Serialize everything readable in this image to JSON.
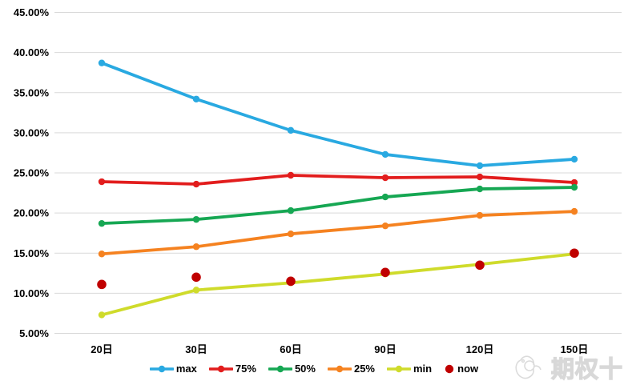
{
  "watermark": {
    "text": "期权十",
    "logo": "hand-logo"
  },
  "chart_data": {
    "type": "line",
    "title": "",
    "xlabel": "",
    "ylabel": "",
    "categories": [
      "20日",
      "30日",
      "60日",
      "90日",
      "120日",
      "150日"
    ],
    "series": [
      {
        "name": "max",
        "color": "#29A9E1",
        "line": true,
        "values": [
          38.7,
          34.2,
          30.3,
          27.3,
          25.9,
          26.7
        ]
      },
      {
        "name": "75%",
        "color": "#E21D1D",
        "line": true,
        "values": [
          23.9,
          23.6,
          24.7,
          24.4,
          24.5,
          23.8
        ]
      },
      {
        "name": "50%",
        "color": "#16A753",
        "line": true,
        "values": [
          18.7,
          19.2,
          20.3,
          22.0,
          23.0,
          23.2
        ]
      },
      {
        "name": "25%",
        "color": "#F58220",
        "line": true,
        "values": [
          14.9,
          15.8,
          17.4,
          18.4,
          19.7,
          20.2
        ]
      },
      {
        "name": "min",
        "color": "#CFDB2B",
        "line": true,
        "values": [
          7.3,
          10.4,
          11.3,
          12.4,
          13.6,
          14.9
        ]
      },
      {
        "name": "now",
        "color": "#C00000",
        "line": false,
        "values": [
          11.1,
          12.0,
          11.5,
          12.6,
          13.5,
          15.0
        ]
      }
    ],
    "ylim": [
      5,
      45
    ],
    "ytick_values": [
      45,
      40,
      35,
      30,
      25,
      20,
      15,
      10,
      5
    ],
    "ytick_labels": [
      "45.00%",
      "40.00%",
      "35.00%",
      "30.00%",
      "25.00%",
      "20.00%",
      "15.00%",
      "10.00%",
      "5.00%"
    ],
    "grid": true,
    "grid_color": "#D9D9D9",
    "legend_position": "bottom"
  }
}
